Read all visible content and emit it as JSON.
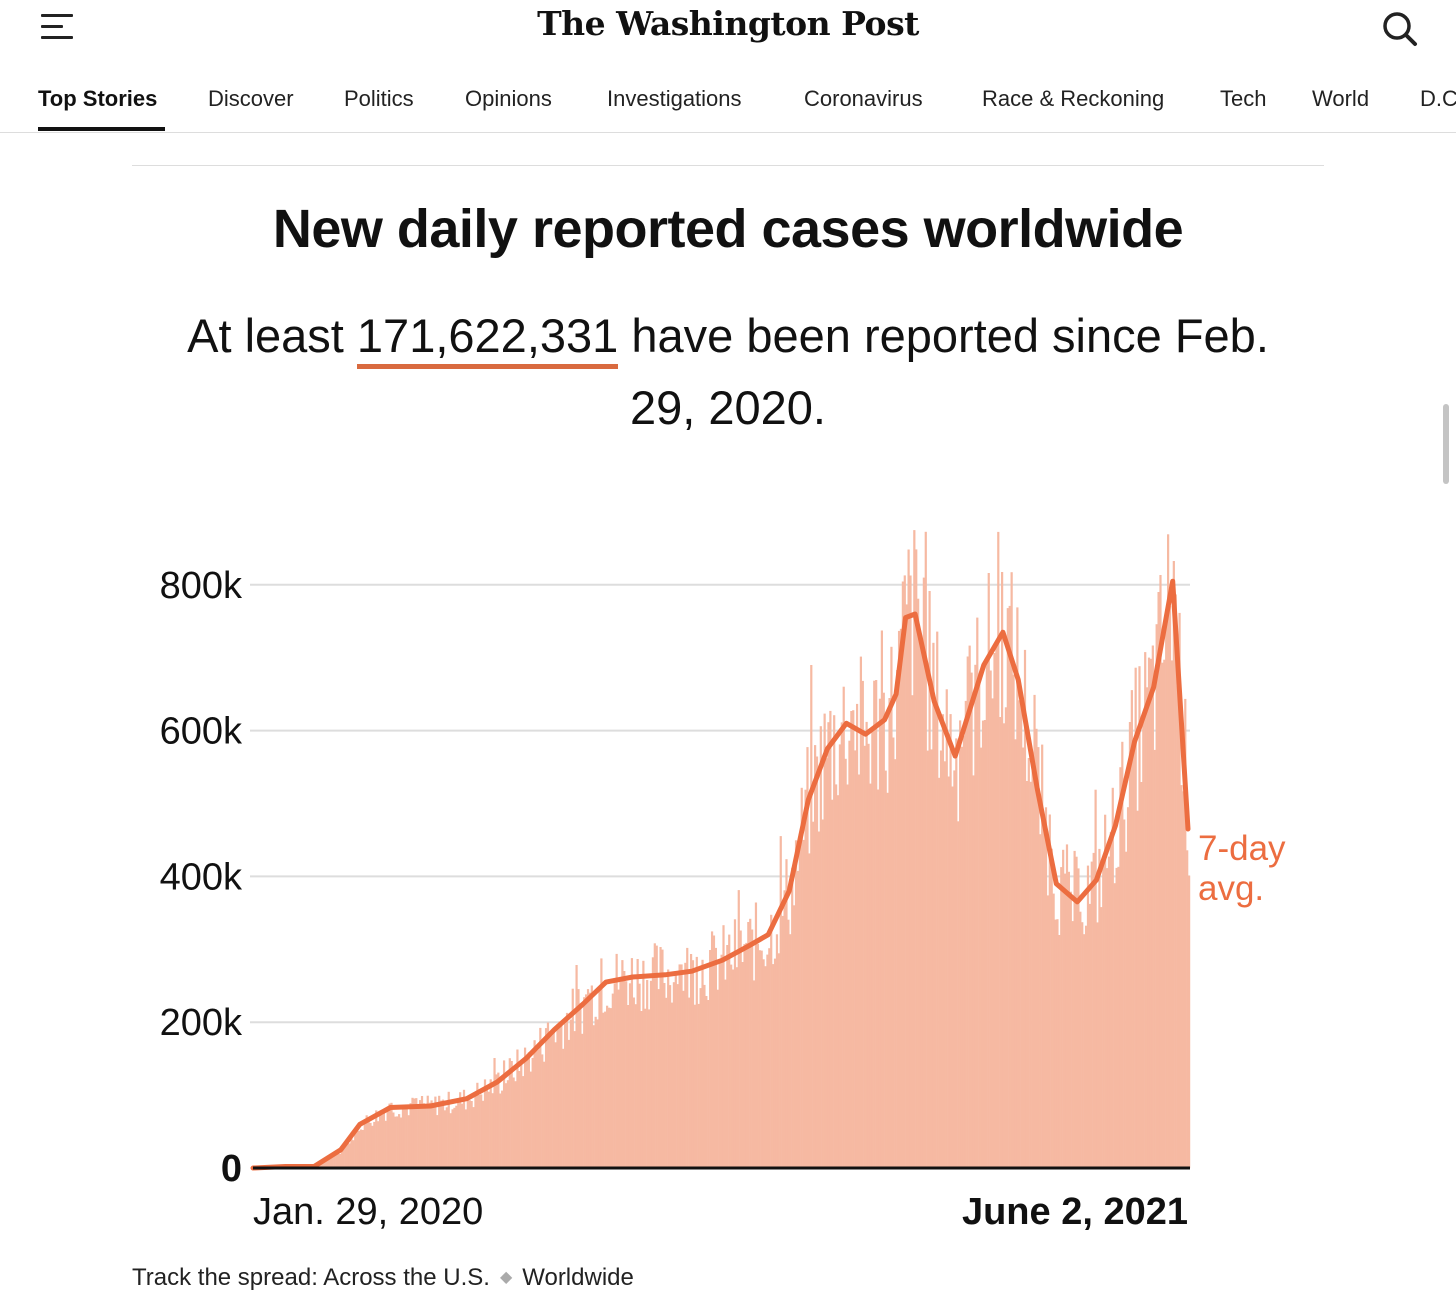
{
  "header": {
    "logo": "The Washington Post",
    "menu_icon": "hamburger-menu-icon",
    "search_icon": "search-icon"
  },
  "nav": {
    "tabs": [
      {
        "label": "Top Stories",
        "active": true
      },
      {
        "label": "Discover"
      },
      {
        "label": "Politics"
      },
      {
        "label": "Opinions"
      },
      {
        "label": "Investigations"
      },
      {
        "label": "Coronavirus"
      },
      {
        "label": "Race & Reckoning"
      },
      {
        "label": "Tech"
      },
      {
        "label": "World"
      },
      {
        "label": "D.C"
      }
    ]
  },
  "article": {
    "title": "New daily reported cases worldwide",
    "subtitle_before": "At least ",
    "subtitle_total": "171,622,331",
    "subtitle_after": " have been reported since Feb. 29, 2020."
  },
  "colors": {
    "bar": "#f6b9a2",
    "line": "#ec6d40",
    "underline": "#d96a3f",
    "grid": "#dddddd"
  },
  "chart_data": {
    "type": "bar",
    "title": "New daily reported cases worldwide",
    "ylim": [
      0,
      1000000
    ],
    "yticks": [
      {
        "value": 0,
        "label": "0"
      },
      {
        "value": 200000,
        "label": "200k"
      },
      {
        "value": 400000,
        "label": "400k"
      },
      {
        "value": 600000,
        "label": "600k"
      },
      {
        "value": 800000,
        "label": "800k"
      }
    ],
    "x_start_label": "Jan. 29, 2020",
    "x_end_label": "June 2, 2021",
    "line_label": [
      "7-day",
      "avg."
    ],
    "x": [
      "2020-01-29",
      "2020-02-15",
      "2020-03-01",
      "2020-03-15",
      "2020-03-25",
      "2020-04-10",
      "2020-05-01",
      "2020-05-20",
      "2020-06-05",
      "2020-06-20",
      "2020-07-05",
      "2020-07-20",
      "2020-08-01",
      "2020-08-15",
      "2020-09-01",
      "2020-09-15",
      "2020-10-01",
      "2020-10-15",
      "2020-10-25",
      "2020-11-05",
      "2020-11-15",
      "2020-11-25",
      "2020-12-05",
      "2020-12-15",
      "2020-12-25",
      "2020-12-31",
      "2021-01-05",
      "2021-01-10",
      "2021-01-20",
      "2021-01-31",
      "2021-02-15",
      "2021-02-25",
      "2021-03-05",
      "2021-03-15",
      "2021-03-25",
      "2021-04-05",
      "2021-04-15",
      "2021-04-25",
      "2021-05-05",
      "2021-05-15",
      "2021-05-25",
      "2021-06-02"
    ],
    "series": [
      {
        "name": "7-day avg.",
        "values": [
          0,
          2000,
          2000,
          25000,
          60000,
          83000,
          85000,
          95000,
          118000,
          150000,
          190000,
          225000,
          255000,
          262000,
          265000,
          270000,
          285000,
          305000,
          320000,
          380000,
          505000,
          575000,
          610000,
          595000,
          615000,
          650000,
          755000,
          760000,
          640000,
          565000,
          690000,
          735000,
          670000,
          520000,
          390000,
          365000,
          395000,
          470000,
          585000,
          660000,
          805000,
          465000
        ]
      }
    ]
  },
  "footer": {
    "prefix": "Track the spread: ",
    "link_us": "Across the U.S.",
    "link_world": "Worldwide"
  }
}
